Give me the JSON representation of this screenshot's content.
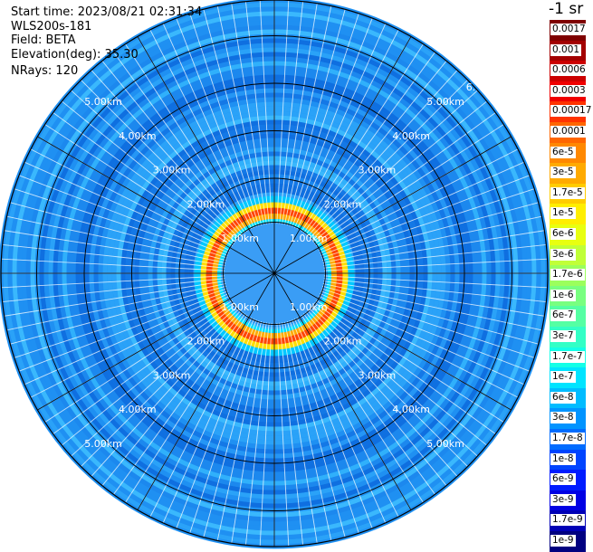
{
  "header": {
    "start_time": "Start time: 2023/08/21 02:31:34",
    "instrument": "WLS200s-181",
    "field": "Field: BETA",
    "elevation": "Elevation(deg): 35.30",
    "nrays": "NRays: 120"
  },
  "unit_label": "-1 sr",
  "colorbar": {
    "labels": [
      "0.0017",
      "0.001",
      "0.0006",
      "0.0003",
      "0.00017",
      "0.0001",
      "6e-5",
      "3e-5",
      "1.7e-5",
      "1e-5",
      "6e-6",
      "3e-6",
      "1.7e-6",
      "1e-6",
      "6e-7",
      "3e-7",
      "1.7e-7",
      "1e-7",
      "6e-8",
      "3e-8",
      "1.7e-8",
      "1e-8",
      "6e-9",
      "3e-9",
      "1.7e-9",
      "1e-9"
    ],
    "colors": [
      "#7f0000",
      "#a30000",
      "#cc0000",
      "#f00000",
      "#ff3300",
      "#ff6600",
      "#ff8800",
      "#ffaa00",
      "#ffcc00",
      "#ffee00",
      "#e8ff10",
      "#c0ff37",
      "#9bff5c",
      "#78ff80",
      "#55ffa3",
      "#33ffc6",
      "#14ffe7",
      "#00e4ff",
      "#00bcff",
      "#0094ff",
      "#006cff",
      "#0044ff",
      "#001cff",
      "#0000e4",
      "#0000b6",
      "#000080"
    ]
  },
  "range_labels": [
    "1.00km",
    "2.00km",
    "3.00km",
    "4.00km",
    "5.00km"
  ],
  "range_labels_corner": "6."
}
